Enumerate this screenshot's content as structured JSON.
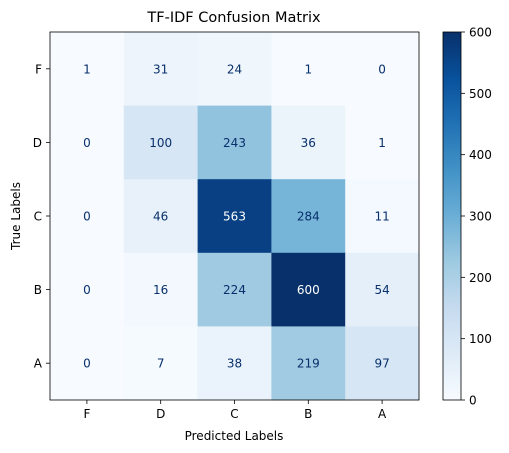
{
  "chart_data": {
    "type": "heatmap",
    "title": "TF-IDF Confusion Matrix",
    "xlabel": "Predicted Labels",
    "ylabel": "True Labels",
    "x_categories": [
      "F",
      "D",
      "C",
      "B",
      "A"
    ],
    "y_categories": [
      "F",
      "D",
      "C",
      "B",
      "A"
    ],
    "values": [
      [
        1,
        31,
        24,
        1,
        0
      ],
      [
        0,
        100,
        243,
        36,
        1
      ],
      [
        0,
        46,
        563,
        284,
        11
      ],
      [
        0,
        16,
        224,
        600,
        54
      ],
      [
        0,
        7,
        38,
        219,
        97
      ]
    ],
    "colormap": "Blues",
    "vmin": 0,
    "vmax": 600,
    "colorbar_ticks": [
      0,
      100,
      200,
      300,
      400,
      500,
      600
    ],
    "grid": false,
    "colors": {
      "low": "#f7fbff",
      "high": "#08306b",
      "text_dark": "#08306b",
      "text_light": "#ffffff"
    }
  }
}
